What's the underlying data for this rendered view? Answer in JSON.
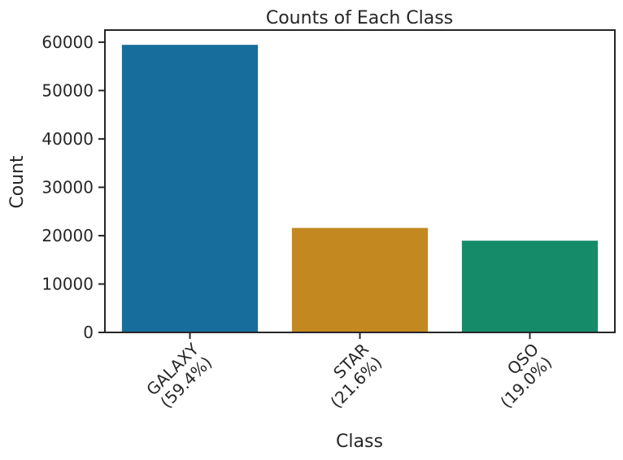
{
  "chart_data": {
    "type": "bar",
    "title": "Counts of Each Class",
    "xlabel": "Class",
    "ylabel": "Count",
    "categories": [
      "GALAXY",
      "STAR",
      "QSO"
    ],
    "category_labels": [
      [
        "GALAXY",
        "(59.4%)"
      ],
      [
        "STAR",
        "(21.6%)"
      ],
      [
        "QSO",
        "(19.0%)"
      ]
    ],
    "values": [
      59445,
      21594,
      18961
    ],
    "colors": [
      "#176d9c",
      "#c38820",
      "#158b6a"
    ],
    "yticks": [
      0,
      10000,
      20000,
      30000,
      40000,
      50000,
      60000
    ],
    "ylim": [
      0,
      62500
    ],
    "grid": false,
    "legend": "none"
  }
}
